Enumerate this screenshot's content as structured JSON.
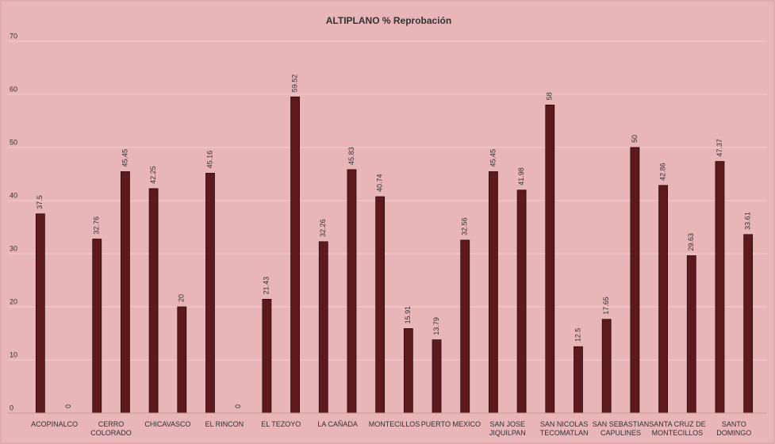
{
  "chart_data": {
    "type": "bar",
    "title": "ALTIPLANO % Reprobación",
    "categories": [
      "ACOPINALCO",
      null,
      "CERRO COLORADO",
      null,
      "CHICAVASCO",
      null,
      "EL RINCON",
      null,
      "EL TEZOYO",
      null,
      "LA CAÑADA",
      null,
      "MONTECILLOS",
      null,
      "PUERTO MEXICO",
      null,
      "SAN JOSE JIQUILPAN",
      null,
      "SAN NICOLAS TECOMATLAN",
      null,
      "SAN SEBASTIAN CAPULINES",
      null,
      "SANTA CRUZ DE MONTECILLOS",
      null,
      "SANTO DOMINGO",
      null
    ],
    "values": [
      37.5,
      0,
      32.76,
      45.45,
      42.25,
      20,
      45.16,
      0,
      21.43,
      59.52,
      32.26,
      45.83,
      40.74,
      15.91,
      13.79,
      32.56,
      45.45,
      41.98,
      58,
      12.5,
      17.65,
      50,
      42.86,
      29.63,
      47.37,
      33.61
    ],
    "color": "#5c1a1f",
    "ylim": [
      0,
      70
    ],
    "yticks": [
      0,
      10,
      20,
      30,
      40,
      50,
      60,
      70
    ],
    "grid": true
  }
}
